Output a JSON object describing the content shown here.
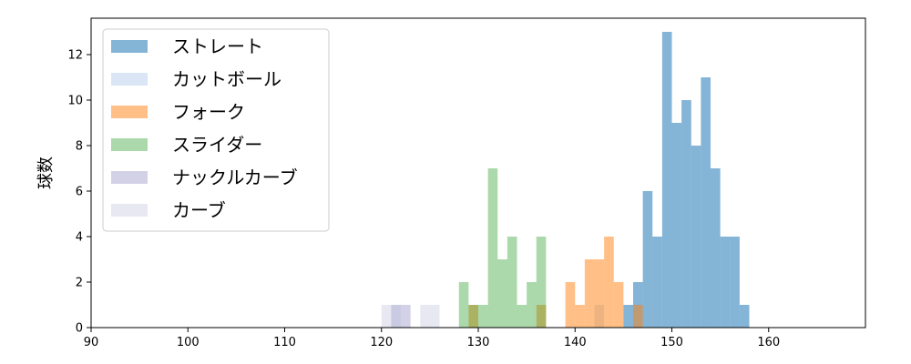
{
  "chart_data": {
    "type": "histogram",
    "xlabel": "",
    "ylabel": "球数",
    "xlim": [
      90,
      170
    ],
    "ylim": [
      0,
      13.6
    ],
    "xticks": [
      90,
      100,
      110,
      120,
      130,
      140,
      150,
      160
    ],
    "yticks": [
      0,
      2,
      4,
      6,
      8,
      10,
      12
    ],
    "legend_position": "top-left",
    "grid": false,
    "series": [
      {
        "name": "ストレート",
        "color": "#1f77b4",
        "opacity": 0.55,
        "bins": [
          [
            145,
            146,
            1
          ],
          [
            146,
            147,
            2
          ],
          [
            147,
            148,
            6
          ],
          [
            148,
            149,
            4
          ],
          [
            149,
            150,
            13
          ],
          [
            150,
            151,
            9
          ],
          [
            151,
            152,
            10
          ],
          [
            152,
            153,
            8
          ],
          [
            153,
            154,
            11
          ],
          [
            154,
            155,
            7
          ],
          [
            155,
            156,
            4
          ],
          [
            156,
            157,
            4
          ],
          [
            157,
            158,
            1
          ]
        ]
      },
      {
        "name": "カットボール",
        "color": "#aec7e8",
        "opacity": 0.45,
        "bins": [
          [
            142,
            143,
            1
          ]
        ]
      },
      {
        "name": "フォーク",
        "color": "#ff7f0e",
        "opacity": 0.5,
        "bins": [
          [
            129,
            130,
            1
          ],
          [
            136,
            137,
            1
          ],
          [
            139,
            140,
            2
          ],
          [
            140,
            141,
            1
          ],
          [
            141,
            142,
            3
          ],
          [
            142,
            143,
            3
          ],
          [
            143,
            144,
            4
          ],
          [
            144,
            145,
            2
          ],
          [
            146,
            147,
            1
          ]
        ]
      },
      {
        "name": "スライダー",
        "color": "#2ca02c",
        "opacity": 0.4,
        "bins": [
          [
            128,
            129,
            2
          ],
          [
            129,
            130,
            1
          ],
          [
            130,
            131,
            1
          ],
          [
            131,
            132,
            7
          ],
          [
            132,
            133,
            3
          ],
          [
            133,
            134,
            4
          ],
          [
            134,
            135,
            1
          ],
          [
            135,
            136,
            2
          ],
          [
            136,
            137,
            4
          ]
        ]
      },
      {
        "name": "ナックルカーブ",
        "color": "#9e9ac8",
        "opacity": 0.45,
        "bins": [
          [
            121,
            122,
            1
          ],
          [
            122,
            123,
            1
          ]
        ]
      },
      {
        "name": "カーブ",
        "color": "#bcbddc",
        "opacity": 0.35,
        "bins": [
          [
            120,
            121,
            1
          ],
          [
            121,
            122,
            1
          ],
          [
            124,
            125,
            1
          ],
          [
            125,
            126,
            1
          ]
        ]
      }
    ]
  }
}
